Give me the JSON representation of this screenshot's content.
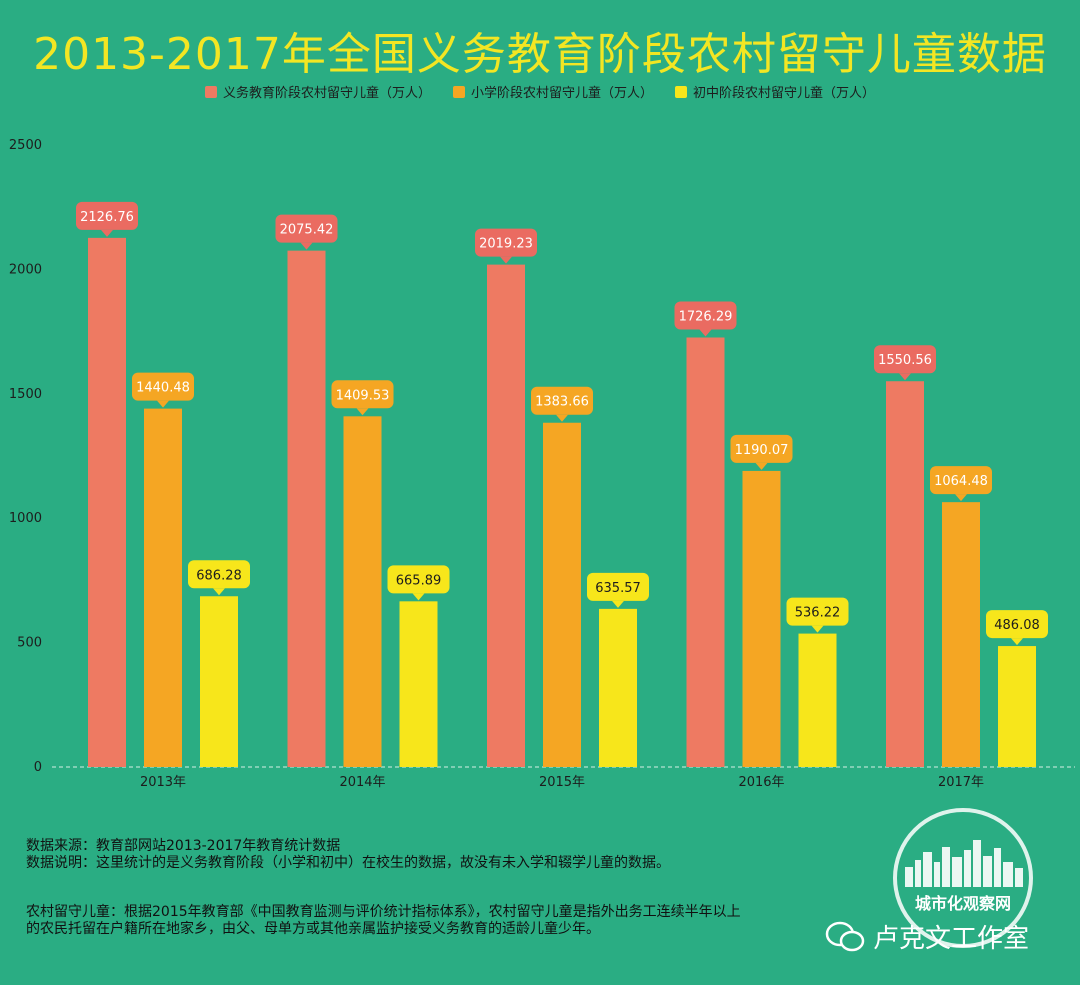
{
  "title": "2013-2017年全国义务教育阶段农村留守儿童数据",
  "legend": [
    {
      "label": "义务教育阶段农村留守儿童（万人）",
      "color": "#ee7a62"
    },
    {
      "label": "小学阶段农村留守儿童（万人）",
      "color": "#f5a623"
    },
    {
      "label": "初中阶段农村留守儿童（万人）",
      "color": "#f7e61b"
    }
  ],
  "chart_data": {
    "type": "bar",
    "categories": [
      "2013年",
      "2014年",
      "2015年",
      "2016年",
      "2017年"
    ],
    "series": [
      {
        "name": "义务教育阶段农村留守儿童（万人）",
        "color": "#ee7a62",
        "label_bg": "#ea6b61",
        "values": [
          2126.76,
          2075.42,
          2019.23,
          1726.29,
          1550.56
        ],
        "labels": [
          "2126.76",
          "2075.42",
          "2019.23",
          "1726.29",
          "1550.56"
        ]
      },
      {
        "name": "小学阶段农村留守儿童（万人）",
        "color": "#f5a623",
        "label_bg": "#f5a623",
        "values": [
          1440.48,
          1409.53,
          1383.66,
          1190.07,
          1064.48
        ],
        "labels": [
          "1440.48",
          "1409.53",
          "1383.66",
          "1190.07",
          "1064.48"
        ]
      },
      {
        "name": "初中阶段农村留守儿童（万人）",
        "color": "#f7e61b",
        "label_bg": "#f7e61b",
        "values": [
          686.28,
          665.89,
          635.57,
          536.22,
          486.08
        ],
        "labels": [
          "686.28",
          "665.89",
          "635.57",
          "536.22",
          "486.08"
        ]
      }
    ],
    "yticks": [
      "0",
      "500",
      "1000",
      "1500",
      "2000",
      "2500"
    ],
    "ylim": [
      0,
      2500
    ],
    "legend_position": "top-center"
  },
  "notes": {
    "source": "数据来源：教育部网站2013-2017年教育统计数据",
    "explanation": "数据说明：这里统计的是义务教育阶段（小学和初中）在校生的数据，故没有未入学和辍学儿童的数据。",
    "definition_line1": "农村留守儿童：根据2015年教育部《中国教育监测与评价统计指标体系》，农村留守儿童是指外出务工连续半年以上",
    "definition_line2": "的农民托留在户籍所在地家乡，由父、母单方或其他亲属监护接受义务教育的适龄儿童少年。"
  },
  "watermark": {
    "label": "城市化观察网",
    "wechat": "卢克文工作室"
  }
}
